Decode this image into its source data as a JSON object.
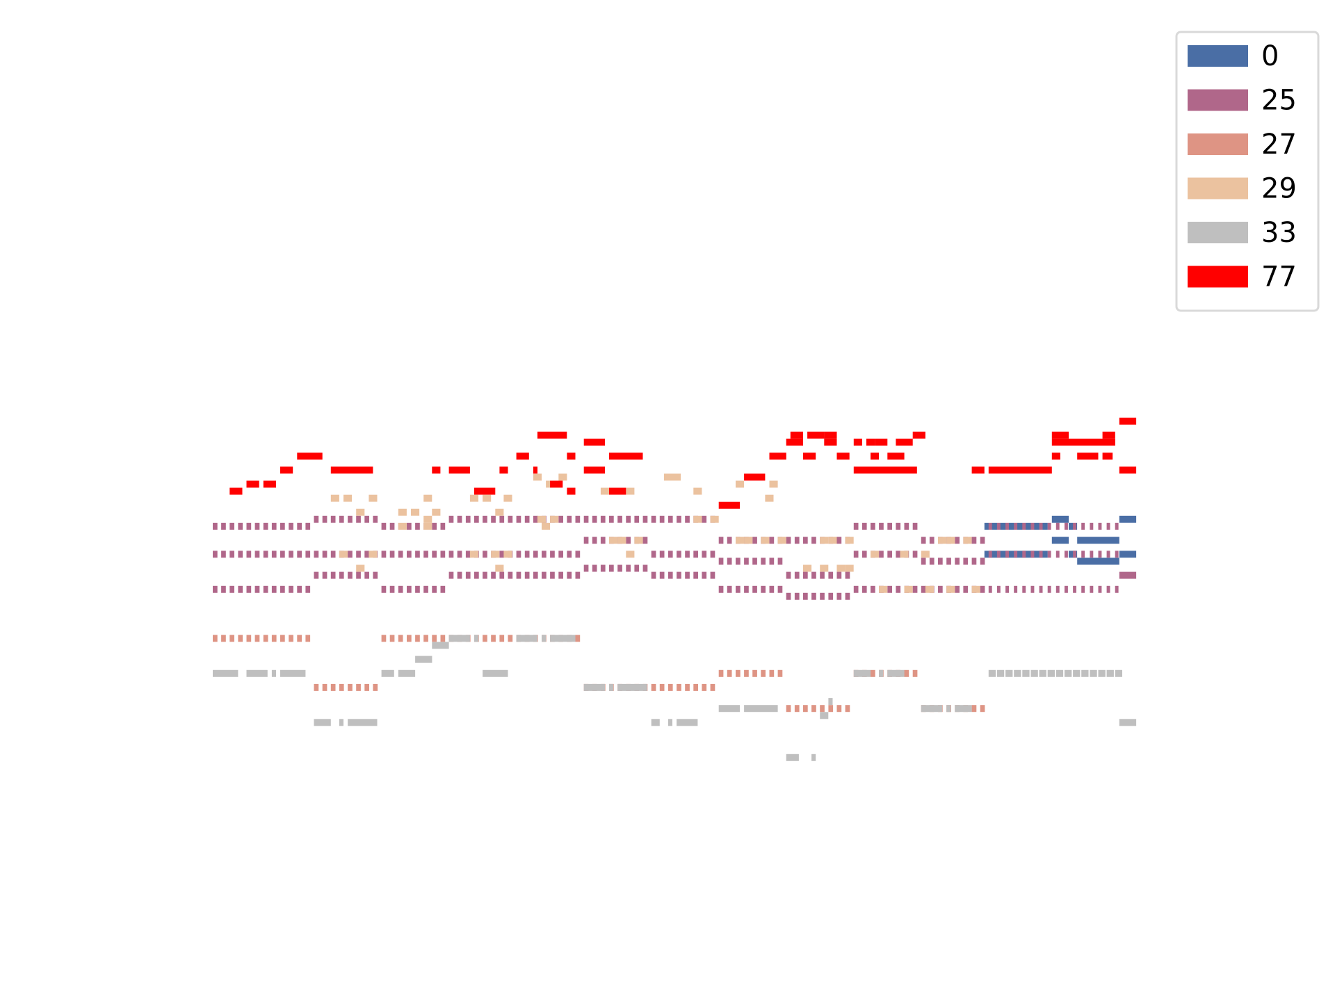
{
  "chart_data": {
    "type": "pianoroll",
    "xlabel": "",
    "ylabel": "",
    "axes_visible": false,
    "grid": false,
    "legend": {
      "placement": "top-right"
    },
    "xlim": [
      0,
      109
    ],
    "ylim": [
      0,
      60
    ],
    "series": [
      {
        "name": "0",
        "color": "#4a6ea5",
        "notes": [
          {
            "t": 91.5,
            "d": 7.5,
            "p": 36
          },
          {
            "t": 91.5,
            "d": 7.5,
            "p": 32
          },
          {
            "t": 99.5,
            "d": 2,
            "p": 37
          },
          {
            "t": 101.5,
            "d": 1,
            "p": 36
          },
          {
            "t": 99.5,
            "d": 2,
            "p": 34
          },
          {
            "t": 102.5,
            "d": 5,
            "p": 34
          },
          {
            "t": 101.5,
            "d": 1,
            "p": 32
          },
          {
            "t": 102.5,
            "d": 5,
            "p": 31
          },
          {
            "t": 107.5,
            "d": 2,
            "p": 37
          },
          {
            "t": 107.5,
            "d": 2,
            "p": 32
          }
        ]
      },
      {
        "name": "25",
        "color": "#b0678a",
        "notes": [
          {
            "t": 0,
            "d": 12,
            "p": 36,
            "rep": true
          },
          {
            "t": 0,
            "d": 12,
            "p": 32,
            "rep": true
          },
          {
            "t": 0,
            "d": 12,
            "p": 27,
            "rep": true
          },
          {
            "t": 12,
            "d": 8,
            "p": 37,
            "rep": true
          },
          {
            "t": 12,
            "d": 8,
            "p": 32,
            "rep": true
          },
          {
            "t": 12,
            "d": 8,
            "p": 29,
            "rep": true
          },
          {
            "t": 20,
            "d": 8,
            "p": 36,
            "rep": true
          },
          {
            "t": 20,
            "d": 8,
            "p": 32,
            "rep": true
          },
          {
            "t": 20,
            "d": 8,
            "p": 27,
            "rep": true
          },
          {
            "t": 28,
            "d": 16,
            "p": 37,
            "rep": true
          },
          {
            "t": 28,
            "d": 16,
            "p": 32,
            "rep": true
          },
          {
            "t": 28,
            "d": 16,
            "p": 29,
            "rep": true
          },
          {
            "t": 44,
            "d": 8,
            "p": 37,
            "rep": true
          },
          {
            "t": 44,
            "d": 8,
            "p": 34,
            "rep": true
          },
          {
            "t": 44,
            "d": 8,
            "p": 30,
            "rep": true
          },
          {
            "t": 52,
            "d": 8,
            "p": 37,
            "rep": true
          },
          {
            "t": 52,
            "d": 8,
            "p": 32,
            "rep": true
          },
          {
            "t": 52,
            "d": 8,
            "p": 29,
            "rep": true
          },
          {
            "t": 60,
            "d": 8,
            "p": 34,
            "rep": true
          },
          {
            "t": 60,
            "d": 8,
            "p": 31,
            "rep": true
          },
          {
            "t": 60,
            "d": 8,
            "p": 27,
            "rep": true
          },
          {
            "t": 68,
            "d": 8,
            "p": 34,
            "rep": true
          },
          {
            "t": 68,
            "d": 8,
            "p": 29,
            "rep": true
          },
          {
            "t": 68,
            "d": 8,
            "p": 26,
            "rep": true
          },
          {
            "t": 76,
            "d": 8,
            "p": 36,
            "rep": true
          },
          {
            "t": 76,
            "d": 8,
            "p": 32,
            "rep": true
          },
          {
            "t": 76,
            "d": 8,
            "p": 27,
            "rep": true
          },
          {
            "t": 84,
            "d": 8,
            "p": 34,
            "rep": true
          },
          {
            "t": 84,
            "d": 8,
            "p": 31,
            "rep": true
          },
          {
            "t": 84,
            "d": 8,
            "p": 27,
            "rep": true
          },
          {
            "t": 92,
            "d": 15.5,
            "p": 36,
            "rep": true,
            "gap": 0.6
          },
          {
            "t": 92,
            "d": 15.5,
            "p": 32,
            "rep": true,
            "gap": 0.6
          },
          {
            "t": 92,
            "d": 15.5,
            "p": 27,
            "rep": true,
            "gap": 0.6
          },
          {
            "t": 107.5,
            "d": 2,
            "p": 29
          }
        ]
      },
      {
        "name": "27",
        "color": "#de9484",
        "notes": [
          {
            "t": 0,
            "d": 12,
            "p": 20,
            "rep": true
          },
          {
            "t": 12,
            "d": 8,
            "p": 13,
            "rep": true
          },
          {
            "t": 20,
            "d": 24,
            "p": 20,
            "rep": true
          },
          {
            "t": 44,
            "d": 16,
            "p": 13,
            "rep": true
          },
          {
            "t": 60,
            "d": 8,
            "p": 15,
            "rep": true
          },
          {
            "t": 68,
            "d": 8,
            "p": 10,
            "rep": true
          },
          {
            "t": 76,
            "d": 8,
            "p": 15,
            "rep": true
          },
          {
            "t": 84,
            "d": 8,
            "p": 10,
            "rep": true
          }
        ]
      },
      {
        "name": "29",
        "color": "#ebc29f",
        "notes": [
          {
            "t": 14,
            "d": 1,
            "p": 40
          },
          {
            "t": 15,
            "d": 1,
            "p": 32
          },
          {
            "t": 15.5,
            "d": 1,
            "p": 40
          },
          {
            "t": 17,
            "d": 1,
            "p": 38
          },
          {
            "t": 17,
            "d": 1,
            "p": 30
          },
          {
            "t": 18.5,
            "d": 1,
            "p": 40
          },
          {
            "t": 18.5,
            "d": 1,
            "p": 32
          },
          {
            "t": 22,
            "d": 1,
            "p": 38
          },
          {
            "t": 22,
            "d": 1,
            "p": 36
          },
          {
            "t": 23.5,
            "d": 1,
            "p": 38
          },
          {
            "t": 25,
            "d": 1,
            "p": 36
          },
          {
            "t": 25,
            "d": 1,
            "p": 40
          },
          {
            "t": 26,
            "d": 1,
            "p": 38
          },
          {
            "t": 25,
            "d": 1,
            "p": 37
          },
          {
            "t": 30.5,
            "d": 1,
            "p": 40
          },
          {
            "t": 30.5,
            "d": 1,
            "p": 32
          },
          {
            "t": 32,
            "d": 1,
            "p": 40
          },
          {
            "t": 33,
            "d": 1,
            "p": 32
          },
          {
            "t": 33.5,
            "d": 1,
            "p": 38
          },
          {
            "t": 33.5,
            "d": 1,
            "p": 30
          },
          {
            "t": 34.5,
            "d": 1,
            "p": 40
          },
          {
            "t": 34.5,
            "d": 1,
            "p": 32
          },
          {
            "t": 38,
            "d": 1,
            "p": 43
          },
          {
            "t": 38.5,
            "d": 1,
            "p": 37
          },
          {
            "t": 39,
            "d": 1,
            "p": 36
          },
          {
            "t": 39.5,
            "d": 1,
            "p": 42
          },
          {
            "t": 40,
            "d": 1,
            "p": 37
          },
          {
            "t": 41,
            "d": 1,
            "p": 43
          },
          {
            "t": 46,
            "d": 1,
            "p": 41
          },
          {
            "t": 47,
            "d": 1,
            "p": 34
          },
          {
            "t": 48,
            "d": 1,
            "p": 34
          },
          {
            "t": 49,
            "d": 1,
            "p": 41
          },
          {
            "t": 49,
            "d": 1,
            "p": 32
          },
          {
            "t": 50,
            "d": 1,
            "p": 34
          },
          {
            "t": 53.5,
            "d": 1,
            "p": 43
          },
          {
            "t": 54.5,
            "d": 1,
            "p": 43
          },
          {
            "t": 57,
            "d": 1,
            "p": 37
          },
          {
            "t": 57,
            "d": 1,
            "p": 41
          },
          {
            "t": 59,
            "d": 1,
            "p": 37
          },
          {
            "t": 62,
            "d": 1,
            "p": 42
          },
          {
            "t": 62,
            "d": 1,
            "p": 34
          },
          {
            "t": 63,
            "d": 1,
            "p": 34
          },
          {
            "t": 65,
            "d": 1,
            "p": 34
          },
          {
            "t": 65.5,
            "d": 1,
            "p": 40
          },
          {
            "t": 67,
            "d": 1,
            "p": 34
          },
          {
            "t": 66,
            "d": 1,
            "p": 42
          },
          {
            "t": 70,
            "d": 1,
            "p": 30
          },
          {
            "t": 72,
            "d": 1,
            "p": 34
          },
          {
            "t": 72,
            "d": 1,
            "p": 30
          },
          {
            "t": 73,
            "d": 1,
            "p": 34
          },
          {
            "t": 74,
            "d": 1,
            "p": 30
          },
          {
            "t": 75,
            "d": 1,
            "p": 34
          },
          {
            "t": 75,
            "d": 1,
            "p": 30
          },
          {
            "t": 78,
            "d": 1,
            "p": 32
          },
          {
            "t": 79,
            "d": 1,
            "p": 27
          },
          {
            "t": 81.5,
            "d": 1,
            "p": 32
          },
          {
            "t": 82,
            "d": 1,
            "p": 27
          },
          {
            "t": 84,
            "d": 1,
            "p": 32
          },
          {
            "t": 84.5,
            "d": 1,
            "p": 27
          },
          {
            "t": 86,
            "d": 1,
            "p": 34
          },
          {
            "t": 87,
            "d": 1,
            "p": 34
          },
          {
            "t": 87,
            "d": 1,
            "p": 27
          },
          {
            "t": 89,
            "d": 1,
            "p": 34
          },
          {
            "t": 90,
            "d": 1,
            "p": 27
          }
        ]
      },
      {
        "name": "33",
        "color": "#bfbfbf",
        "notes": [
          {
            "t": 0,
            "d": 3,
            "p": 15
          },
          {
            "t": 4,
            "d": 2.5,
            "p": 15
          },
          {
            "t": 7,
            "d": 0.5,
            "p": 15
          },
          {
            "t": 8,
            "d": 3,
            "p": 15
          },
          {
            "t": 12,
            "d": 2,
            "p": 8
          },
          {
            "t": 15,
            "d": 0.5,
            "p": 8
          },
          {
            "t": 16,
            "d": 3.5,
            "p": 8
          },
          {
            "t": 20,
            "d": 1.5,
            "p": 15
          },
          {
            "t": 22,
            "d": 2,
            "p": 15
          },
          {
            "t": 24,
            "d": 2,
            "p": 17
          },
          {
            "t": 26,
            "d": 2,
            "p": 19
          },
          {
            "t": 28,
            "d": 2.5,
            "p": 20
          },
          {
            "t": 31,
            "d": 0.5,
            "p": 20
          },
          {
            "t": 32,
            "d": 3,
            "p": 15
          },
          {
            "t": 36,
            "d": 2.5,
            "p": 20
          },
          {
            "t": 39,
            "d": 0.5,
            "p": 20
          },
          {
            "t": 40,
            "d": 3,
            "p": 20
          },
          {
            "t": 44,
            "d": 2.5,
            "p": 13
          },
          {
            "t": 47,
            "d": 0.5,
            "p": 13
          },
          {
            "t": 48,
            "d": 3.5,
            "p": 13
          },
          {
            "t": 52,
            "d": 1,
            "p": 8
          },
          {
            "t": 54,
            "d": 0.5,
            "p": 8
          },
          {
            "t": 55,
            "d": 2.5,
            "p": 8
          },
          {
            "t": 60,
            "d": 2.5,
            "p": 10
          },
          {
            "t": 63,
            "d": 4,
            "p": 10
          },
          {
            "t": 68,
            "d": 1.5,
            "p": 3
          },
          {
            "t": 71,
            "d": 0.5,
            "p": 3
          },
          {
            "t": 72,
            "d": 1,
            "p": 9
          },
          {
            "t": 73,
            "d": 0.5,
            "p": 11
          },
          {
            "t": 76,
            "d": 2,
            "p": 15
          },
          {
            "t": 79,
            "d": 0.5,
            "p": 15
          },
          {
            "t": 80,
            "d": 2,
            "p": 15
          },
          {
            "t": 84,
            "d": 2.5,
            "p": 10
          },
          {
            "t": 87,
            "d": 0.5,
            "p": 10
          },
          {
            "t": 88,
            "d": 2,
            "p": 10
          },
          {
            "t": 92,
            "d": 15.5,
            "p": 15,
            "rep": true,
            "gap": 0.15
          },
          {
            "t": 107.5,
            "d": 2,
            "p": 8
          }
        ]
      },
      {
        "name": "77",
        "color": "#ff0000",
        "notes": [
          {
            "t": 2,
            "d": 1.5,
            "p": 41
          },
          {
            "t": 4,
            "d": 1.5,
            "p": 42
          },
          {
            "t": 6,
            "d": 1.5,
            "p": 42
          },
          {
            "t": 8,
            "d": 1.5,
            "p": 44
          },
          {
            "t": 10,
            "d": 3,
            "p": 46
          },
          {
            "t": 14,
            "d": 5,
            "p": 44
          },
          {
            "t": 26,
            "d": 1,
            "p": 44
          },
          {
            "t": 28,
            "d": 2.5,
            "p": 44
          },
          {
            "t": 31,
            "d": 2.5,
            "p": 41
          },
          {
            "t": 34,
            "d": 1,
            "p": 44
          },
          {
            "t": 36,
            "d": 1.5,
            "p": 46
          },
          {
            "t": 38,
            "d": 0.5,
            "p": 44
          },
          {
            "t": 38.5,
            "d": 3.5,
            "p": 49
          },
          {
            "t": 40,
            "d": 1.5,
            "p": 42
          },
          {
            "t": 42,
            "d": 1,
            "p": 46
          },
          {
            "t": 42,
            "d": 1,
            "p": 41
          },
          {
            "t": 44,
            "d": 2.5,
            "p": 48
          },
          {
            "t": 44,
            "d": 2.5,
            "p": 44
          },
          {
            "t": 47,
            "d": 4,
            "p": 46
          },
          {
            "t": 47,
            "d": 2,
            "p": 41
          },
          {
            "t": 60,
            "d": 2.5,
            "p": 39
          },
          {
            "t": 63,
            "d": 2.5,
            "p": 43
          },
          {
            "t": 66,
            "d": 2,
            "p": 46
          },
          {
            "t": 68,
            "d": 2,
            "p": 48
          },
          {
            "t": 68.5,
            "d": 1.5,
            "p": 49
          },
          {
            "t": 70,
            "d": 1.5,
            "p": 46
          },
          {
            "t": 70.5,
            "d": 2,
            "p": 49
          },
          {
            "t": 72.5,
            "d": 1.5,
            "p": 49
          },
          {
            "t": 72.5,
            "d": 1.5,
            "p": 48
          },
          {
            "t": 74,
            "d": 1.5,
            "p": 46
          },
          {
            "t": 76,
            "d": 7.5,
            "p": 44
          },
          {
            "t": 76,
            "d": 1,
            "p": 48
          },
          {
            "t": 77.5,
            "d": 1,
            "p": 48
          },
          {
            "t": 78,
            "d": 1,
            "p": 46
          },
          {
            "t": 78.5,
            "d": 1.5,
            "p": 48
          },
          {
            "t": 80,
            "d": 2,
            "p": 46
          },
          {
            "t": 81,
            "d": 2,
            "p": 48
          },
          {
            "t": 83,
            "d": 1.5,
            "p": 49
          },
          {
            "t": 90,
            "d": 1.5,
            "p": 44
          },
          {
            "t": 92,
            "d": 7.5,
            "p": 44
          },
          {
            "t": 99.5,
            "d": 2,
            "p": 49
          },
          {
            "t": 99.5,
            "d": 7.5,
            "p": 48
          },
          {
            "t": 99.5,
            "d": 1,
            "p": 46
          },
          {
            "t": 102.5,
            "d": 2.5,
            "p": 46
          },
          {
            "t": 105.5,
            "d": 1.5,
            "p": 48
          },
          {
            "t": 105.5,
            "d": 1.5,
            "p": 49
          },
          {
            "t": 105.5,
            "d": 1.2,
            "p": 46
          },
          {
            "t": 107.5,
            "d": 2,
            "p": 51
          },
          {
            "t": 107.5,
            "d": 2,
            "p": 44
          }
        ]
      }
    ]
  }
}
